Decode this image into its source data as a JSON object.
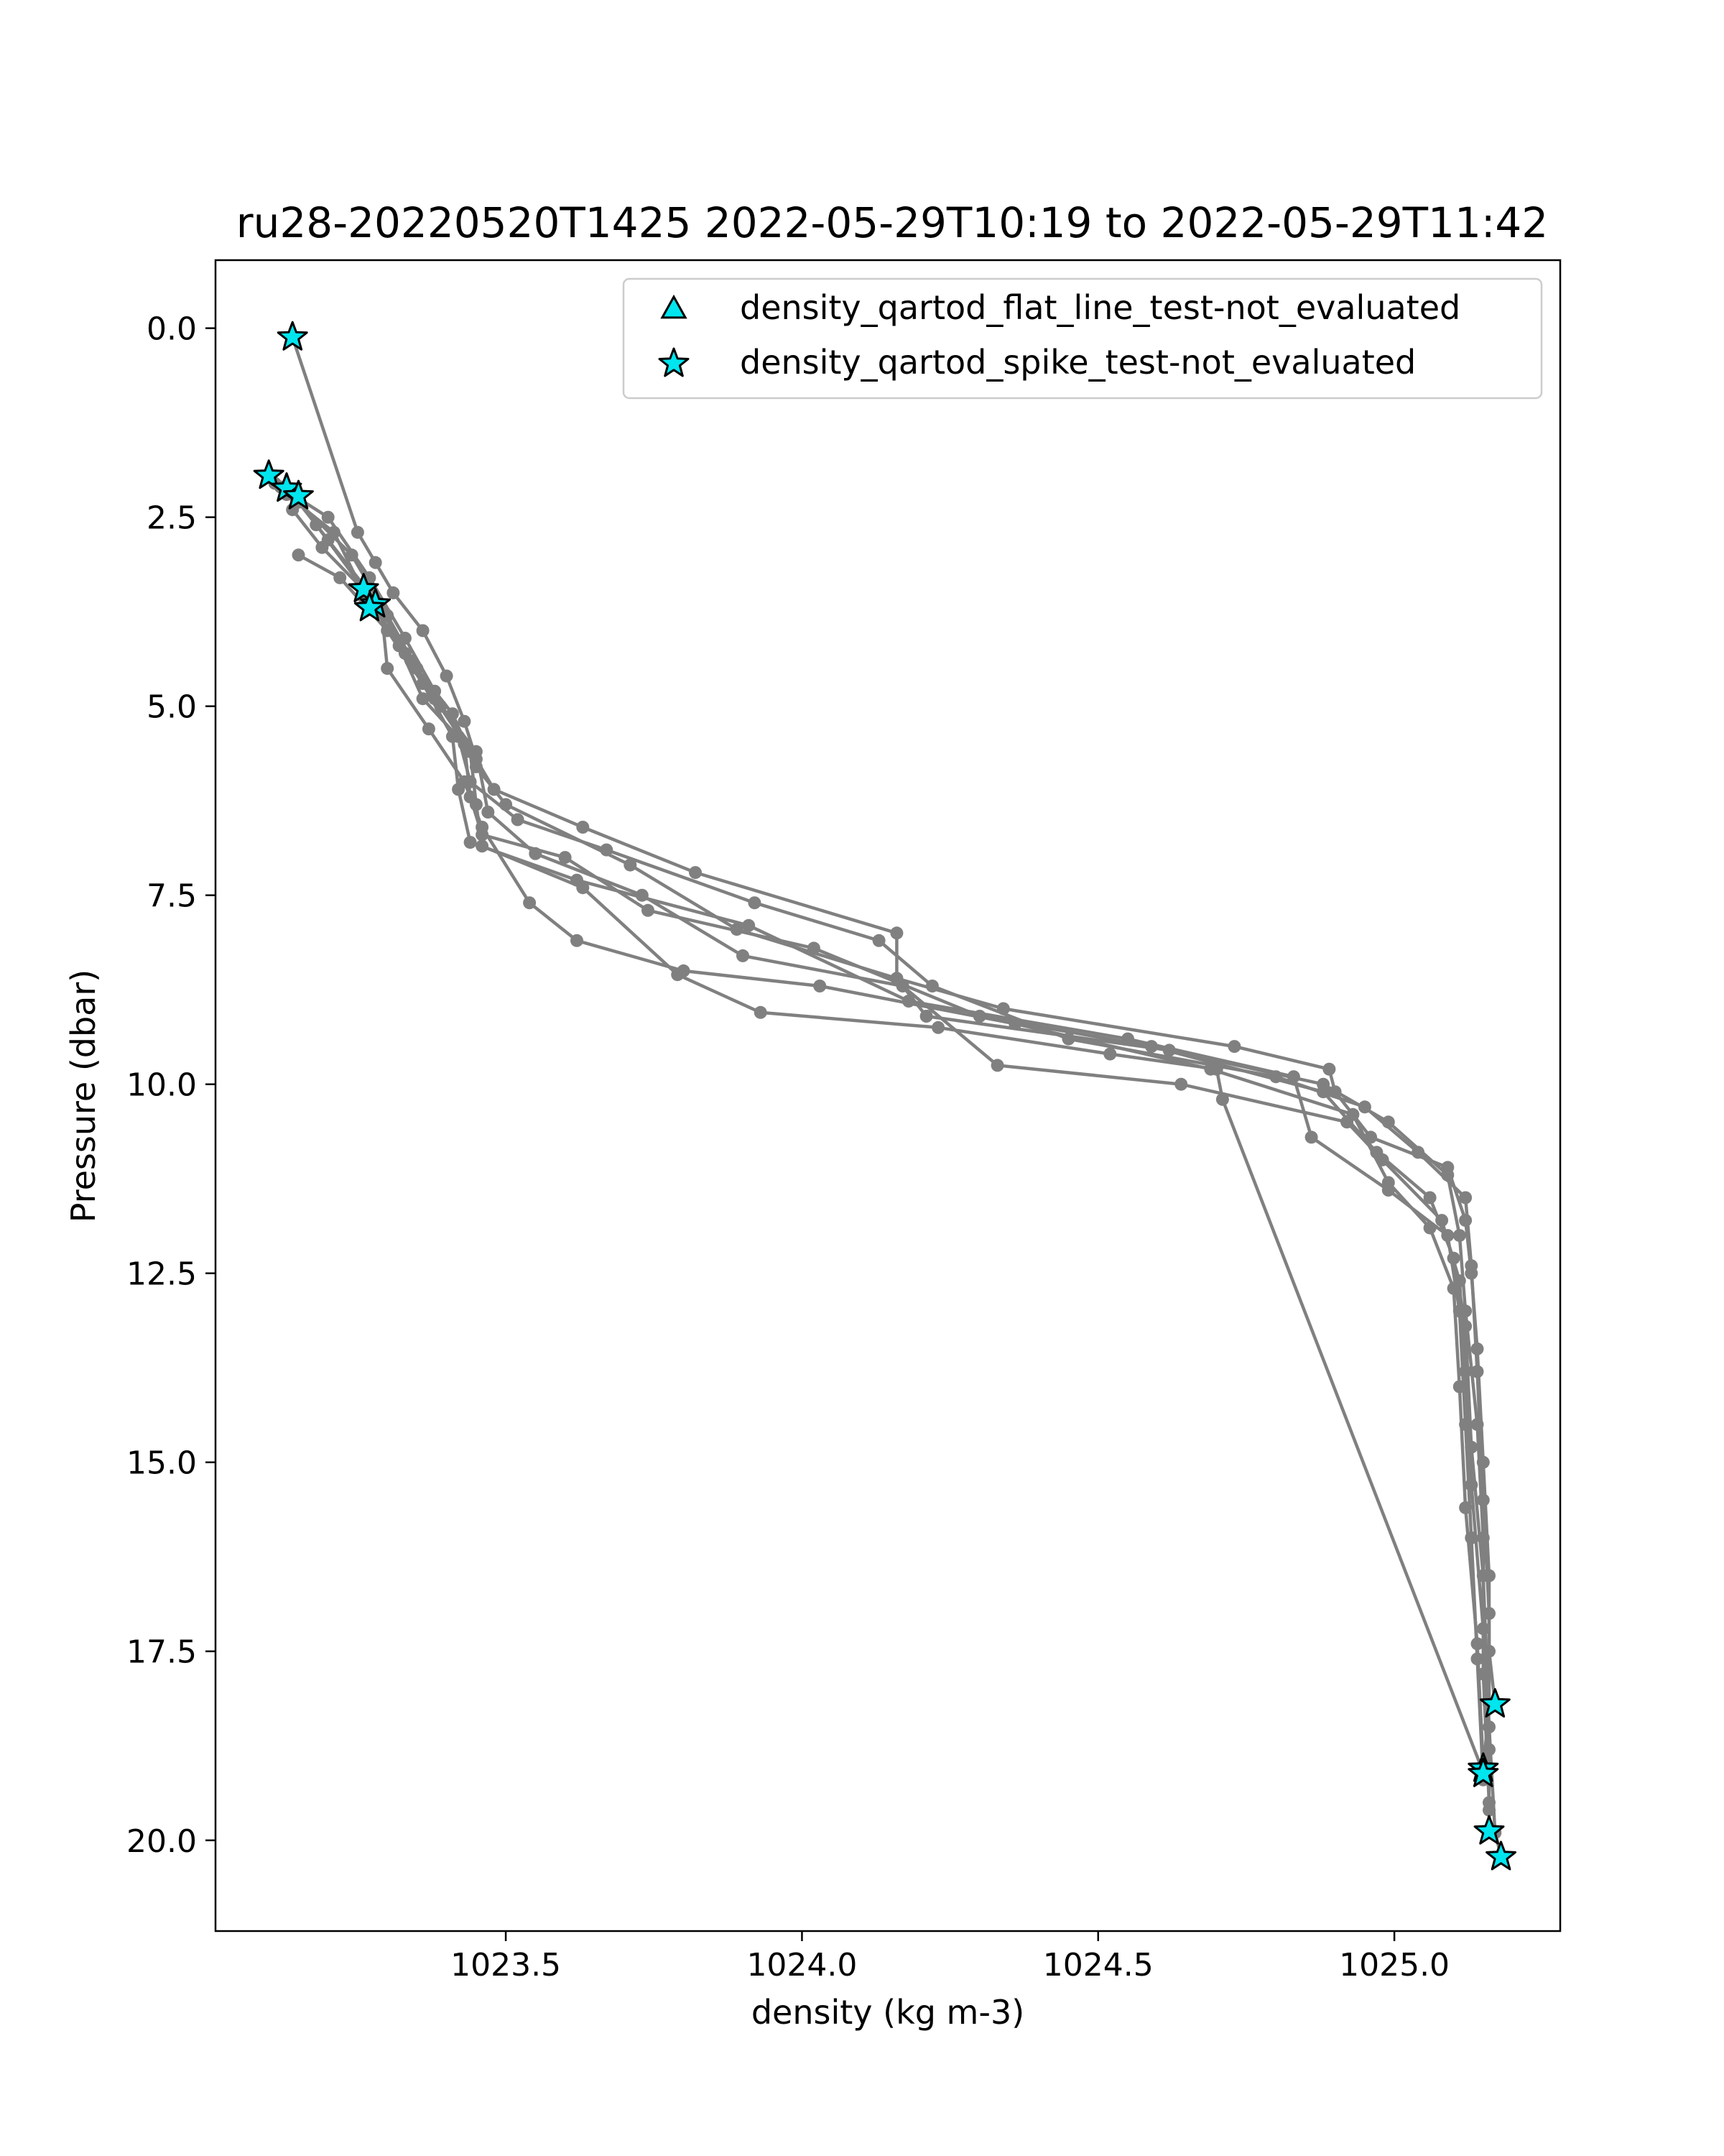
{
  "chart_data": {
    "type": "line",
    "title": "ru28-20220520T1425 2022-05-29T10:19 to 2022-05-29T11:42",
    "xlabel": "density (kg m-3)",
    "ylabel": "Pressure (dbar)",
    "xlim": [
      1023.01,
      1025.28
    ],
    "ylim": [
      21.2,
      -0.9
    ],
    "y_inverted": true,
    "grid": false,
    "xticks": [
      1023.5,
      1024.0,
      1024.5,
      1025.0
    ],
    "xtick_labels": [
      "1023.5",
      "1024.0",
      "1024.5",
      "1025.0"
    ],
    "yticks": [
      0.0,
      2.5,
      5.0,
      7.5,
      10.0,
      12.5,
      15.0,
      17.5,
      20.0
    ],
    "ytick_labels": [
      "0.0",
      "2.5",
      "5.0",
      "7.5",
      "10.0",
      "12.5",
      "15.0",
      "17.5",
      "20.0"
    ],
    "legend": {
      "placement": "upper right",
      "entries": [
        {
          "label": "density_qartod_flat_line_test-not_evaluated",
          "marker": "triangle"
        },
        {
          "label": "density_qartod_spike_test-not_evaluated",
          "marker": "star"
        }
      ]
    },
    "colors": {
      "profile_line": "#808080",
      "flag_fill": "#00e5ee",
      "flag_edge": "#000000"
    },
    "profiles": [
      {
        "points": [
          [
            1023.14,
            0.12
          ],
          [
            1023.25,
            2.7
          ],
          [
            1023.28,
            3.1
          ],
          [
            1023.31,
            3.5
          ],
          [
            1023.36,
            4.0
          ],
          [
            1023.4,
            4.6
          ],
          [
            1023.43,
            5.2
          ],
          [
            1023.45,
            5.7
          ],
          [
            1023.48,
            6.1
          ],
          [
            1023.63,
            6.6
          ],
          [
            1023.82,
            7.2
          ],
          [
            1024.16,
            8.0
          ],
          [
            1024.16,
            8.6
          ],
          [
            1024.34,
            9.0
          ],
          [
            1024.73,
            9.5
          ],
          [
            1024.89,
            9.8
          ],
          [
            1024.9,
            10.1
          ],
          [
            1024.96,
            10.7
          ],
          [
            1025.09,
            11.1
          ],
          [
            1025.12,
            11.8
          ],
          [
            1025.13,
            12.5
          ],
          [
            1025.14,
            13.5
          ],
          [
            1025.15,
            15.0
          ],
          [
            1025.16,
            16.5
          ],
          [
            1025.16,
            17.5
          ],
          [
            1025.17,
            18.2
          ]
        ]
      },
      {
        "points": [
          [
            1023.1,
            1.95
          ],
          [
            1023.12,
            2.1
          ],
          [
            1023.2,
            2.5
          ],
          [
            1023.27,
            3.3
          ],
          [
            1023.33,
            4.1
          ],
          [
            1023.38,
            4.8
          ],
          [
            1023.42,
            5.4
          ],
          [
            1023.44,
            6.0
          ],
          [
            1023.52,
            6.5
          ],
          [
            1023.67,
            6.9
          ],
          [
            1023.92,
            7.6
          ],
          [
            1024.13,
            8.1
          ],
          [
            1024.22,
            8.7
          ],
          [
            1024.45,
            9.4
          ],
          [
            1024.8,
            9.9
          ],
          [
            1024.95,
            10.3
          ],
          [
            1025.04,
            10.9
          ],
          [
            1025.12,
            11.5
          ],
          [
            1025.13,
            12.4
          ],
          [
            1025.14,
            13.8
          ],
          [
            1025.15,
            15.5
          ],
          [
            1025.16,
            17.0
          ],
          [
            1025.16,
            18.2
          ],
          [
            1025.15,
            19.1
          ]
        ]
      },
      {
        "points": [
          [
            1023.11,
            2.05
          ],
          [
            1023.15,
            2.3
          ],
          [
            1023.24,
            3.0
          ],
          [
            1023.3,
            3.8
          ],
          [
            1023.35,
            4.5
          ],
          [
            1023.41,
            5.1
          ],
          [
            1023.45,
            5.8
          ],
          [
            1023.5,
            6.3
          ],
          [
            1023.71,
            7.1
          ],
          [
            1023.89,
            7.95
          ],
          [
            1024.16,
            8.6
          ],
          [
            1024.21,
            9.1
          ],
          [
            1024.62,
            9.55
          ],
          [
            1024.88,
            10.0
          ],
          [
            1024.99,
            10.5
          ],
          [
            1025.09,
            11.2
          ],
          [
            1025.11,
            12.0
          ],
          [
            1025.12,
            13.0
          ],
          [
            1025.14,
            14.5
          ],
          [
            1025.15,
            16.0
          ],
          [
            1025.15,
            17.8
          ],
          [
            1025.16,
            19.5
          ],
          [
            1025.16,
            19.9
          ]
        ]
      },
      {
        "points": [
          [
            1023.14,
            2.2
          ],
          [
            1023.18,
            2.6
          ],
          [
            1023.26,
            3.45
          ],
          [
            1023.32,
            4.2
          ],
          [
            1023.36,
            4.9
          ],
          [
            1023.43,
            5.5
          ],
          [
            1023.44,
            6.2
          ],
          [
            1023.46,
            6.7
          ],
          [
            1023.6,
            7.0
          ],
          [
            1023.74,
            7.7
          ],
          [
            1024.02,
            8.2
          ],
          [
            1024.3,
            9.1
          ],
          [
            1024.59,
            9.5
          ],
          [
            1024.88,
            10.1
          ],
          [
            1024.97,
            10.9
          ],
          [
            1025.06,
            11.5
          ],
          [
            1025.1,
            12.3
          ],
          [
            1025.12,
            13.2
          ],
          [
            1025.13,
            14.8
          ],
          [
            1025.15,
            16.5
          ],
          [
            1025.16,
            18.5
          ],
          [
            1025.17,
            19.9
          ],
          [
            1025.18,
            20.2
          ]
        ]
      },
      {
        "points": [
          [
            1023.15,
            2.3
          ],
          [
            1023.2,
            2.8
          ],
          [
            1023.28,
            3.6
          ],
          [
            1023.34,
            4.4
          ],
          [
            1023.39,
            5.0
          ],
          [
            1023.45,
            5.6
          ],
          [
            1023.47,
            6.4
          ],
          [
            1023.55,
            6.95
          ],
          [
            1023.73,
            7.5
          ],
          [
            1023.9,
            8.3
          ],
          [
            1024.17,
            8.7
          ],
          [
            1024.33,
            9.75
          ],
          [
            1024.64,
            10.0
          ],
          [
            1024.92,
            10.5
          ],
          [
            1024.98,
            11.0
          ],
          [
            1025.08,
            11.8
          ],
          [
            1025.11,
            12.6
          ],
          [
            1025.12,
            13.8
          ],
          [
            1025.13,
            15.3
          ],
          [
            1025.15,
            17.2
          ],
          [
            1025.16,
            18.8
          ],
          [
            1025.16,
            19.6
          ]
        ]
      },
      {
        "points": [
          [
            1023.14,
            2.4
          ],
          [
            1023.19,
            2.9
          ],
          [
            1023.29,
            3.7
          ],
          [
            1023.3,
            4.5
          ],
          [
            1023.37,
            5.3
          ],
          [
            1023.43,
            6.0
          ],
          [
            1023.46,
            6.6
          ],
          [
            1023.54,
            7.6
          ],
          [
            1023.62,
            8.1
          ],
          [
            1023.8,
            8.5
          ],
          [
            1024.03,
            8.7
          ],
          [
            1024.36,
            9.2
          ],
          [
            1024.69,
            9.8
          ],
          [
            1024.93,
            10.4
          ],
          [
            1024.99,
            11.3
          ],
          [
            1025.06,
            11.9
          ],
          [
            1025.1,
            12.7
          ],
          [
            1025.11,
            14.0
          ],
          [
            1025.12,
            15.6
          ],
          [
            1025.14,
            17.4
          ],
          [
            1025.15,
            19.0
          ]
        ]
      },
      {
        "points": [
          [
            1023.15,
            3.0
          ],
          [
            1023.22,
            3.3
          ],
          [
            1023.3,
            4.0
          ],
          [
            1023.36,
            4.7
          ],
          [
            1023.41,
            5.4
          ],
          [
            1023.42,
            6.1
          ],
          [
            1023.44,
            6.8
          ],
          [
            1023.62,
            7.3
          ],
          [
            1023.91,
            7.9
          ],
          [
            1024.18,
            8.9
          ],
          [
            1024.55,
            9.4
          ],
          [
            1024.83,
            9.9
          ],
          [
            1024.86,
            10.7
          ],
          [
            1024.99,
            11.4
          ],
          [
            1025.09,
            12.0
          ],
          [
            1025.11,
            13.0
          ],
          [
            1025.12,
            14.5
          ],
          [
            1025.13,
            16.0
          ],
          [
            1025.14,
            17.6
          ],
          [
            1025.15,
            19.2
          ]
        ]
      },
      {
        "points": [
          [
            1023.13,
            2.2
          ],
          [
            1023.21,
            2.7
          ],
          [
            1023.26,
            3.5
          ],
          [
            1023.33,
            4.3
          ],
          [
            1023.38,
            4.9
          ],
          [
            1023.44,
            5.6
          ],
          [
            1023.45,
            6.3
          ],
          [
            1023.46,
            6.85
          ],
          [
            1023.63,
            7.4
          ],
          [
            1023.79,
            8.55
          ],
          [
            1023.93,
            9.05
          ],
          [
            1024.23,
            9.25
          ],
          [
            1024.52,
            9.6
          ],
          [
            1024.7,
            9.8
          ],
          [
            1024.71,
            10.2
          ],
          [
            1025.15,
            19.1
          ]
        ]
      }
    ],
    "flags_spike_test_not_evaluated": [
      [
        1023.14,
        0.12
      ],
      [
        1023.1,
        1.95
      ],
      [
        1023.13,
        2.12
      ],
      [
        1023.15,
        2.22
      ],
      [
        1023.26,
        3.45
      ],
      [
        1023.28,
        3.65
      ],
      [
        1023.27,
        3.7
      ],
      [
        1025.17,
        18.2
      ],
      [
        1025.15,
        19.05
      ],
      [
        1025.15,
        19.12
      ],
      [
        1025.16,
        19.88
      ],
      [
        1025.18,
        20.22
      ]
    ],
    "flags_flat_line_test_not_evaluated": []
  }
}
